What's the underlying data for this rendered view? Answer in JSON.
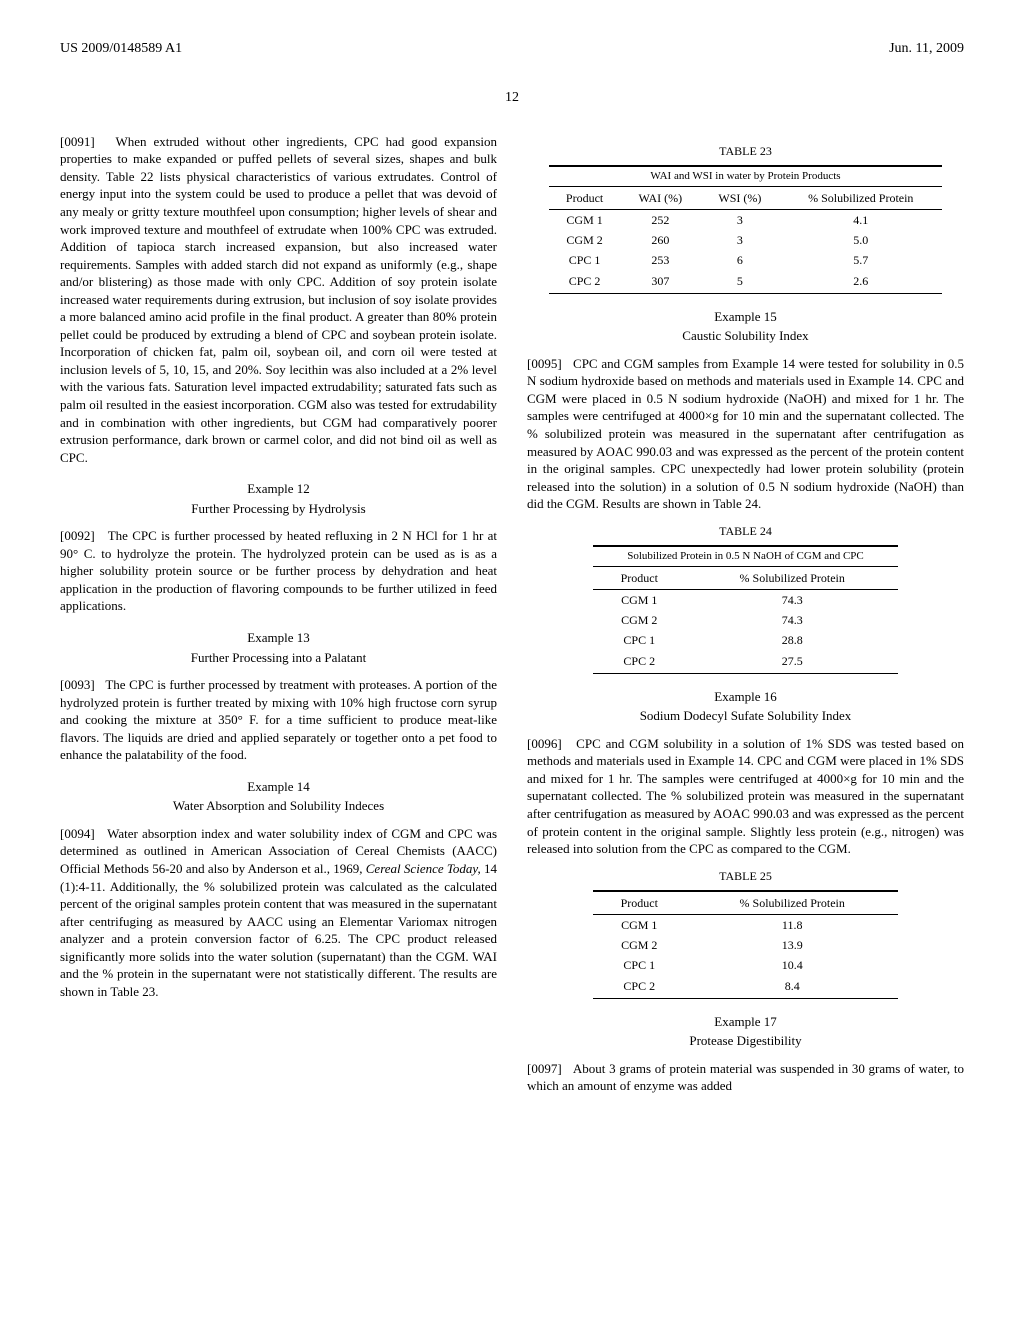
{
  "header": {
    "left": "US 2009/0148589 A1",
    "right": "Jun. 11, 2009"
  },
  "page_number": "12",
  "left_col": {
    "p1_num": "[0091]",
    "p1": "When extruded without other ingredients, CPC had good expansion properties to make expanded or puffed pellets of several sizes, shapes and bulk density. Table 22 lists physical characteristics of various extrudates. Control of energy input into the system could be used to produce a pellet that was devoid of any mealy or gritty texture mouthfeel upon consumption; higher levels of shear and work improved texture and mouthfeel of extrudate when 100% CPC was extruded. Addition of tapioca starch increased expansion, but also increased water requirements. Samples with added starch did not expand as uniformly (e.g., shape and/or blistering) as those made with only CPC. Addition of soy protein isolate increased water requirements during extrusion, but inclusion of soy isolate provides a more balanced amino acid profile in the final product. A greater than 80% protein pellet could be produced by extruding a blend of CPC and soybean protein isolate. Incorporation of chicken fat, palm oil, soybean oil, and corn oil were tested at inclusion levels of 5, 10, 15, and 20%. Soy lecithin was also included at a 2% level with the various fats. Saturation level impacted extrudability; saturated fats such as palm oil resulted in the easiest incorporation. CGM also was tested for extrudability and in combination with other ingredients, but CGM had comparatively poorer extrusion performance, dark brown or carmel color, and did not bind oil as well as CPC.",
    "ex12_num": "Example 12",
    "ex12_title": "Further Processing by Hydrolysis",
    "p2_num": "[0092]",
    "p2": "The CPC is further processed by heated refluxing in 2 N HCl for 1 hr at 90° C. to hydrolyze the protein. The hydrolyzed protein can be used as is as a higher solubility protein source or be further process by dehydration and heat application in the production of flavoring compounds to be further utilized in feed applications.",
    "ex13_num": "Example 13",
    "ex13_title": "Further Processing into a Palatant",
    "p3_num": "[0093]",
    "p3": "The CPC is further processed by treatment with proteases. A portion of the hydrolyzed protein is further treated by mixing with 10% high fructose corn syrup and cooking the mixture at 350° F. for a time sufficient to produce meat-like flavors. The liquids are dried and applied separately or together onto a pet food to enhance the palatability of the food.",
    "ex14_num": "Example 14",
    "ex14_title": "Water Absorption and Solubility Indeces",
    "p4_num": "[0094]",
    "p4_a": "Water absorption index and water solubility index of CGM and CPC was determined as outlined in American Association of Cereal Chemists (AACC) Official Methods 56-20 and also by Anderson et al., 1969, ",
    "p4_i": "Cereal Science Today,",
    "p4_b": " 14 (1):4-11. Additionally, the % solubilized protein was calculated as the calculated percent of the original samples protein content that was measured in the supernatant after centrifuging as measured by AACC using an Elementar Variomax nitrogen analyzer and a protein conversion factor of 6.25. The CPC product released significantly more solids into the water solution (supernatant) than the CGM. WAI and the % protein in the supernatant were not statistically different. The results are shown in Table 23."
  },
  "right_col": {
    "table23": {
      "label": "TABLE 23",
      "caption": "WAI and WSI in water by Protein Products",
      "headers": [
        "Product",
        "WAI (%)",
        "WSI (%)",
        "% Solubilized Protein"
      ],
      "rows": [
        [
          "CGM 1",
          "252",
          "3",
          "4.1"
        ],
        [
          "CGM 2",
          "260",
          "3",
          "5.0"
        ],
        [
          "CPC 1",
          "253",
          "6",
          "5.7"
        ],
        [
          "CPC 2",
          "307",
          "5",
          "2.6"
        ]
      ]
    },
    "ex15_num": "Example 15",
    "ex15_title": "Caustic Solubility Index",
    "p5_num": "[0095]",
    "p5": "CPC and CGM samples from Example 14 were tested for solubility in 0.5 N sodium hydroxide based on methods and materials used in Example 14. CPC and CGM were placed in 0.5 N sodium hydroxide (NaOH) and mixed for 1 hr. The samples were centrifuged at 4000×g for 10 min and the supernatant collected. The % solubilized protein was measured in the supernatant after centrifugation as measured by AOAC 990.03 and was expressed as the percent of the protein content in the original samples. CPC unexpectedly had lower protein solubility (protein released into the solution) in a solution of 0.5 N sodium hydroxide (NaOH) than did the CGM. Results are shown in Table 24.",
    "table24": {
      "label": "TABLE 24",
      "caption": "Solubilized Protein in 0.5 N NaOH of CGM and CPC",
      "headers": [
        "Product",
        "% Solubilized Protein"
      ],
      "rows": [
        [
          "CGM 1",
          "74.3"
        ],
        [
          "CGM 2",
          "74.3"
        ],
        [
          "CPC 1",
          "28.8"
        ],
        [
          "CPC 2",
          "27.5"
        ]
      ]
    },
    "ex16_num": "Example 16",
    "ex16_title": "Sodium Dodecyl Sufate Solubility Index",
    "p6_num": "[0096]",
    "p6": "CPC and CGM solubility in a solution of 1% SDS was tested based on methods and materials used in Example 14. CPC and CGM were placed in 1% SDS and mixed for 1 hr. The samples were centrifuged at 4000×g for 10 min and the supernatant collected. The % solubilized protein was measured in the supernatant after centrifugation as measured by AOAC 990.03 and was expressed as the percent of protein content in the original sample. Slightly less protein (e.g., nitrogen) was released into solution from the CPC as compared to the CGM.",
    "table25": {
      "label": "TABLE 25",
      "headers": [
        "Product",
        "% Solubilized Protein"
      ],
      "rows": [
        [
          "CGM 1",
          "11.8"
        ],
        [
          "CGM 2",
          "13.9"
        ],
        [
          "CPC 1",
          "10.4"
        ],
        [
          "CPC 2",
          "8.4"
        ]
      ]
    },
    "ex17_num": "Example 17",
    "ex17_title": "Protease Digestibility",
    "p7_num": "[0097]",
    "p7": "About 3 grams of protein material was suspended in 30 grams of water, to which an amount of enzyme was added"
  }
}
